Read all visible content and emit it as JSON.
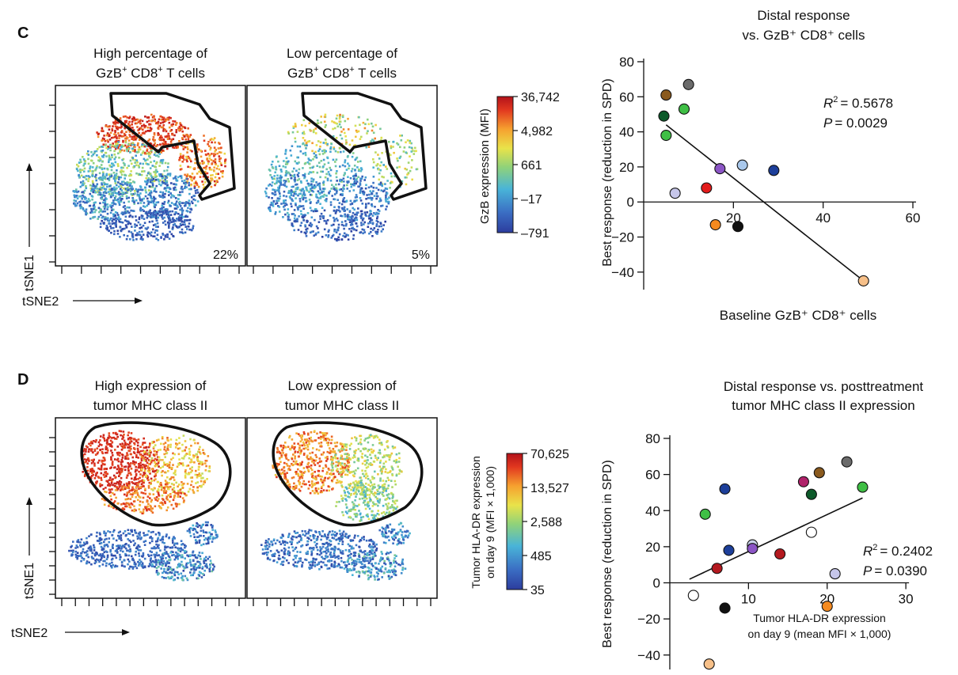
{
  "panel_c": {
    "letter": "C",
    "tsne_high": {
      "title_line1": "High percentage of",
      "title_line2_a": "GzB",
      "title_line2_sup1": "+",
      "title_line2_b": " CD8",
      "title_line2_sup2": "+",
      "title_line2_c": " T cells",
      "percent": "22%"
    },
    "tsne_low": {
      "title_line1": "Low percentage of",
      "title_line2_a": "GzB",
      "title_line2_sup1": "+",
      "title_line2_b": " CD8",
      "title_line2_sup2": "+",
      "title_line2_c": " T cells",
      "percent": "5%"
    },
    "tsne_axis_y": "tSNE1",
    "tsne_axis_x": "tSNE2",
    "colorbar_label": "GzB expression (MFI)",
    "colorbar_ticks": [
      "36,742",
      "4,982",
      "661",
      "–17",
      "–791"
    ]
  },
  "panel_d": {
    "letter": "D",
    "tsne_high": {
      "title_line1": "High expression of",
      "title_line2": "tumor MHC class II"
    },
    "tsne_low": {
      "title_line1": "Low expression of",
      "title_line2": "tumor MHC class II"
    },
    "tsne_axis_y": "tSNE1",
    "tsne_axis_x": "tSNE2",
    "colorbar_label_line1": "Tumor HLA-DR expression",
    "colorbar_label_line2": "on day 9 (MFI × 1,000)",
    "colorbar_ticks": [
      "70,625",
      "13,527",
      "2,588",
      "485",
      "35"
    ]
  },
  "colormap": [
    "#2c3c9e",
    "#3b6fc4",
    "#49b4d8",
    "#8fd27a",
    "#e9e34a",
    "#f6a12f",
    "#e2381f",
    "#b3121a"
  ],
  "chart_data": [
    {
      "type": "scatter",
      "title_line1": "Distal response",
      "title_line2": "vs. GzB⁺ CD8⁺ cells",
      "xlabel": "Baseline GzB⁺ CD8⁺ cells",
      "ylabel": "Best response (reduction in SPD)",
      "xlim": [
        0,
        60
      ],
      "ylim": [
        -50,
        80
      ],
      "xticks": [
        20,
        40,
        60
      ],
      "yticks": [
        -40,
        -20,
        0,
        20,
        40,
        60,
        80
      ],
      "stats_r2": "= 0.5678",
      "stats_p": "= 0.0029",
      "fit_line": {
        "x": [
          5,
          49
        ],
        "y": [
          44,
          -45
        ]
      },
      "points": [
        {
          "x": 5,
          "y": 61,
          "color": "#8a5a1e"
        },
        {
          "x": 10,
          "y": 67,
          "color": "#6b6b6b"
        },
        {
          "x": 4.5,
          "y": 49,
          "color": "#0d5a2a"
        },
        {
          "x": 9,
          "y": 53,
          "color": "#3fbf45"
        },
        {
          "x": 5,
          "y": 38,
          "color": "#3fbf45"
        },
        {
          "x": 17,
          "y": 19,
          "color": "#8b55c5"
        },
        {
          "x": 22,
          "y": 21,
          "color": "#a9c8ec"
        },
        {
          "x": 29,
          "y": 18,
          "color": "#1d3f9a"
        },
        {
          "x": 14,
          "y": 8,
          "color": "#e31c1c"
        },
        {
          "x": 7,
          "y": 5,
          "color": "#c6c6ea"
        },
        {
          "x": 16,
          "y": -13,
          "color": "#f58a1f"
        },
        {
          "x": 21,
          "y": -14,
          "color": "#111111"
        },
        {
          "x": 49,
          "y": -45,
          "color": "#f7c089"
        }
      ]
    },
    {
      "type": "scatter",
      "title_line1": "Distal response vs. posttreatment",
      "title_line2": "tumor MHC class II expression",
      "xlabel_line1": "Tumor HLA-DR expression",
      "xlabel_line2": "on day 9 (mean MFI × 1,000)",
      "ylabel": "Best response (reduction in SPD)",
      "xlim": [
        0,
        32
      ],
      "ylim": [
        -48,
        80
      ],
      "xticks": [
        10,
        20,
        30
      ],
      "yticks": [
        -40,
        -20,
        0,
        20,
        40,
        60,
        80
      ],
      "stats_r2": "= 0.2402",
      "stats_p": "= 0.0390",
      "fit_line": {
        "x": [
          2.5,
          24.5
        ],
        "y": [
          2,
          47
        ]
      },
      "points": [
        {
          "x": 7,
          "y": 52,
          "color": "#1d3f9a"
        },
        {
          "x": 4.5,
          "y": 38,
          "color": "#3fbf45"
        },
        {
          "x": 17,
          "y": 56,
          "color": "#b0226a"
        },
        {
          "x": 19,
          "y": 61,
          "color": "#8a5a1e"
        },
        {
          "x": 22.5,
          "y": 67,
          "color": "#6b6b6b"
        },
        {
          "x": 18,
          "y": 49,
          "color": "#0d5a2a"
        },
        {
          "x": 24.5,
          "y": 53,
          "color": "#3fbf45"
        },
        {
          "x": 7.5,
          "y": 18,
          "color": "#1d3f9a"
        },
        {
          "x": 10.5,
          "y": 21,
          "color": "#c9d3ea"
        },
        {
          "x": 10.5,
          "y": 19,
          "color": "#8b55c5"
        },
        {
          "x": 14,
          "y": 16,
          "color": "#b4191f"
        },
        {
          "x": 18,
          "y": 28,
          "color": "#ffffff"
        },
        {
          "x": 21,
          "y": 5,
          "color": "#c6c6ea"
        },
        {
          "x": 6,
          "y": 8,
          "color": "#b4191f"
        },
        {
          "x": 3,
          "y": -7,
          "color": "#ffffff"
        },
        {
          "x": 7,
          "y": -14,
          "color": "#111111"
        },
        {
          "x": 20,
          "y": -13,
          "color": "#f58a1f"
        },
        {
          "x": 5,
          "y": -45,
          "color": "#f7c089"
        }
      ]
    }
  ]
}
